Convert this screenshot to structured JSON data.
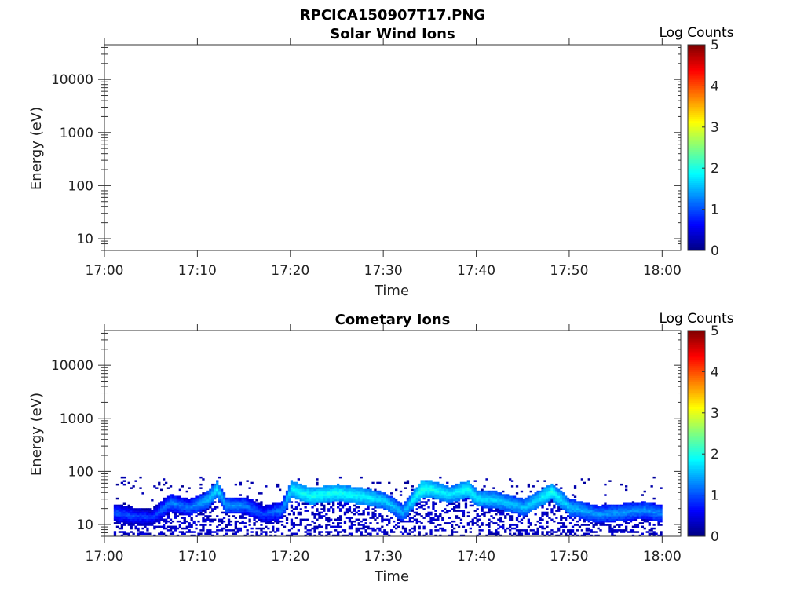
{
  "figure_title": "RPCICA150907T17.PNG",
  "chart_data": [
    {
      "type": "heatmap",
      "title": "Solar Wind Ions",
      "xlabel": "Time",
      "ylabel": "Energy (eV)",
      "x_ticks": [
        "17:00",
        "17:10",
        "17:20",
        "17:30",
        "17:40",
        "17:50",
        "18:00"
      ],
      "x_range": [
        "17:00",
        "18:02"
      ],
      "y_scale": "log",
      "y_ticks": [
        10,
        100,
        1000,
        10000
      ],
      "y_range": [
        6,
        45000
      ],
      "colorbar": {
        "label": "Log Counts",
        "range": [
          0,
          5
        ],
        "ticks": [
          0,
          1,
          2,
          3,
          4,
          5
        ],
        "colormap": "jet"
      },
      "data": []
    },
    {
      "type": "heatmap",
      "title": "Cometary Ions",
      "xlabel": "Time",
      "ylabel": "Energy (eV)",
      "x_ticks": [
        "17:00",
        "17:10",
        "17:20",
        "17:30",
        "17:40",
        "17:50",
        "18:00"
      ],
      "x_range": [
        "17:00",
        "18:02"
      ],
      "y_scale": "log",
      "y_ticks": [
        10,
        100,
        1000,
        10000
      ],
      "y_range": [
        6,
        45000
      ],
      "colorbar": {
        "label": "Log Counts",
        "range": [
          0,
          5
        ],
        "ticks": [
          0,
          1,
          2,
          3,
          4,
          5
        ],
        "colormap": "jet"
      },
      "data_extent": {
        "time_start": "17:01",
        "time_end": "18:00",
        "energy_max_eV": 80
      },
      "peak_energy_profile": {
        "time": [
          "17:01",
          "17:03",
          "17:05",
          "17:07",
          "17:09",
          "17:11",
          "17:12",
          "17:13",
          "17:15",
          "17:17",
          "17:19",
          "17:20",
          "17:22",
          "17:25",
          "17:28",
          "17:30",
          "17:32",
          "17:34",
          "17:35",
          "17:37",
          "17:39",
          "17:40",
          "17:42",
          "17:45",
          "17:48",
          "17:50",
          "17:53",
          "17:55",
          "17:58",
          "18:00"
        ],
        "energy_eV": [
          16,
          14,
          13,
          25,
          20,
          28,
          45,
          22,
          22,
          15,
          18,
          45,
          33,
          38,
          32,
          27,
          16,
          45,
          45,
          35,
          45,
          30,
          28,
          20,
          40,
          20,
          15,
          16,
          18,
          15
        ],
        "log_counts": [
          1.1,
          1.0,
          0.9,
          1.3,
          1.2,
          1.6,
          1.8,
          1.4,
          1.3,
          1.0,
          1.3,
          1.9,
          2.0,
          2.0,
          1.9,
          1.7,
          1.5,
          2.1,
          2.0,
          1.8,
          2.0,
          1.8,
          1.7,
          1.6,
          2.0,
          1.6,
          1.4,
          1.4,
          1.4,
          1.3
        ]
      }
    }
  ]
}
